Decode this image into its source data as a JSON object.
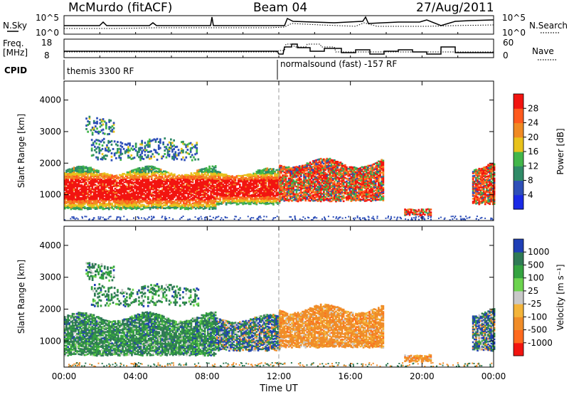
{
  "header": {
    "station": "McMurdo (fitACF)",
    "beam": "Beam 04",
    "date": "27/Aug/2011"
  },
  "noise_panel": {
    "left_label": "N.Sky",
    "right_label": "N.Search",
    "left_ticks": [
      "10^5",
      "10^0"
    ],
    "right_ticks": [
      "10^5",
      "10^0"
    ]
  },
  "freq_panel": {
    "left_label_line1": "Freq.",
    "left_label_line2": "[MHz]",
    "right_label": "Nave",
    "left_ticks": [
      "18",
      "8"
    ],
    "right_ticks": [
      "60",
      "0"
    ]
  },
  "cpid_panel": {
    "label": "CPID",
    "modes": [
      {
        "name": "themis 3300 RF",
        "start_hour": 0.0
      },
      {
        "name": "normalsound (fast) -157 RF",
        "start_hour": 12.0
      }
    ]
  },
  "x_axis": {
    "label": "Time UT",
    "range_hours": [
      0,
      24
    ],
    "ticks": [
      {
        "hour": 0,
        "label": "00:00"
      },
      {
        "hour": 4,
        "label": "04:00"
      },
      {
        "hour": 8,
        "label": "08:00"
      },
      {
        "hour": 12,
        "label": "12:00"
      },
      {
        "hour": 16,
        "label": "16:00"
      },
      {
        "hour": 20,
        "label": "20:00"
      },
      {
        "hour": 24,
        "label": "00:00"
      }
    ]
  },
  "chart_data": [
    {
      "type": "heatmap",
      "ylabel": "Slant Range [km]",
      "ylim": [
        180,
        4600
      ],
      "yticks": [
        1000,
        2000,
        3000,
        4000
      ],
      "colorbar": {
        "label": "Power [dB]",
        "ticks": [
          "4",
          "8",
          "12",
          "16",
          "20",
          "24",
          "28"
        ],
        "colors": [
          "#1a2ae6",
          "#2e4fb8",
          "#2f8a67",
          "#42b64a",
          "#e8c21c",
          "#f08a24",
          "#ff5a1e",
          "#f21410"
        ]
      },
      "features": [
        {
          "t0": 0.0,
          "t1": 8.5,
          "r0": 550,
          "r1": 1750,
          "level": "high"
        },
        {
          "t0": 8.5,
          "t1": 12.0,
          "r0": 700,
          "r1": 1700,
          "level": "high"
        },
        {
          "t0": 12.0,
          "t1": 17.8,
          "r0": 800,
          "r1": 2000,
          "level": "medium"
        },
        {
          "t0": 19.0,
          "t1": 20.5,
          "r0": 350,
          "r1": 550,
          "level": "medium"
        },
        {
          "t0": 22.8,
          "t1": 24.0,
          "r0": 700,
          "r1": 1900,
          "level": "medium"
        },
        {
          "t0": 1.5,
          "t1": 7.5,
          "r0": 2100,
          "r1": 2700,
          "level": "low"
        },
        {
          "t0": 1.2,
          "t1": 2.8,
          "r0": 2900,
          "r1": 3400,
          "level": "low"
        }
      ]
    },
    {
      "type": "heatmap",
      "ylabel": "Slant Range [km]",
      "ylim": [
        180,
        4600
      ],
      "yticks": [
        1000,
        2000,
        3000,
        4000
      ],
      "colorbar": {
        "label": "Velocity [m s⁻¹]",
        "ticks": [
          "1000",
          "500",
          "100",
          "25",
          "-25",
          "-100",
          "-500",
          "-1000"
        ],
        "colors": [
          "#1f3fb6",
          "#2f7a55",
          "#34a340",
          "#6cd34e",
          "#c8c8c8",
          "#f3b43a",
          "#f08c28",
          "#ff6a1e",
          "#f21410"
        ]
      },
      "features": [
        {
          "t0": 0.0,
          "t1": 8.5,
          "r0": 550,
          "r1": 1750,
          "sign": "positive"
        },
        {
          "t0": 8.5,
          "t1": 12.0,
          "r0": 700,
          "r1": 1700,
          "sign": "mixed"
        },
        {
          "t0": 12.0,
          "t1": 17.8,
          "r0": 800,
          "r1": 2000,
          "sign": "negative"
        },
        {
          "t0": 19.0,
          "t1": 20.5,
          "r0": 350,
          "r1": 550,
          "sign": "negative"
        },
        {
          "t0": 22.8,
          "t1": 24.0,
          "r0": 700,
          "r1": 1900,
          "sign": "mixed"
        },
        {
          "t0": 1.5,
          "t1": 7.5,
          "r0": 2100,
          "r1": 2700,
          "sign": "positive"
        },
        {
          "t0": 1.2,
          "t1": 2.8,
          "r0": 2900,
          "r1": 3400,
          "sign": "positive"
        }
      ]
    }
  ]
}
